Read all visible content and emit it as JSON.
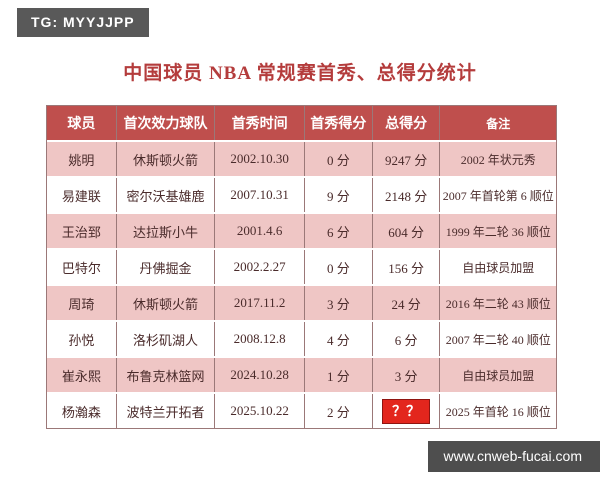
{
  "badges": {
    "top_left": "TG: MYYJJPP",
    "bottom_right": "www.cnweb-fucai.com"
  },
  "title": "中国球员 NBA 常规赛首秀、总得分统计",
  "table": {
    "headers": [
      "球员",
      "首次效力球队",
      "首秀时间",
      "首秀得分",
      "总得分",
      "备注"
    ],
    "rows": [
      [
        "姚明",
        "休斯顿火箭",
        "2002.10.30",
        "0 分",
        "9247 分",
        "2002 年状元秀"
      ],
      [
        "易建联",
        "密尔沃基雄鹿",
        "2007.10.31",
        "9 分",
        "2148 分",
        "2007 年首轮第 6 顺位"
      ],
      [
        "王治郅",
        "达拉斯小牛",
        "2001.4.6",
        "6 分",
        "604 分",
        "1999 年二轮 36 顺位"
      ],
      [
        "巴特尔",
        "丹佛掘金",
        "2002.2.27",
        "0 分",
        "156 分",
        "自由球员加盟"
      ],
      [
        "周琦",
        "休斯顿火箭",
        "2017.11.2",
        "3 分",
        "24 分",
        "2016 年二轮 43 顺位"
      ],
      [
        "孙悦",
        "洛杉矶湖人",
        "2008.12.8",
        "4 分",
        "6 分",
        "2007 年二轮 40 顺位"
      ],
      [
        "崔永熙",
        "布鲁克林篮网",
        "2024.10.28",
        "1 分",
        "3 分",
        "自由球员加盟"
      ],
      [
        "杨瀚森",
        "波特兰开拓者",
        "2025.10.22",
        "2 分",
        "？？",
        "2025 年首轮 16 顺位"
      ]
    ],
    "unknown_value_cell": {
      "row": 7,
      "col": 4,
      "text": "？？",
      "highlight_color": "#e3261d"
    }
  },
  "chart_data": {
    "type": "table",
    "title": "中国球员 NBA 常规赛首秀、总得分统计",
    "columns": [
      "球员",
      "首次效力球队",
      "首秀时间",
      "首秀得分",
      "总得分",
      "备注"
    ],
    "rows": [
      [
        "姚明",
        "休斯顿火箭",
        "2002.10.30",
        "0 分",
        "9247 分",
        "2002 年状元秀"
      ],
      [
        "易建联",
        "密尔沃基雄鹿",
        "2007.10.31",
        "9 分",
        "2148 分",
        "2007 年首轮第 6 顺位"
      ],
      [
        "王治郅",
        "达拉斯小牛",
        "2001.4.6",
        "6 分",
        "604 分",
        "1999 年二轮 36 顺位"
      ],
      [
        "巴特尔",
        "丹佛掘金",
        "2002.2.27",
        "0 分",
        "156 分",
        "自由球员加盟"
      ],
      [
        "周琦",
        "休斯顿火箭",
        "2017.11.2",
        "3 分",
        "24 分",
        "2016 年二轮 43 顺位"
      ],
      [
        "孙悦",
        "洛杉矶湖人",
        "2008.12.8",
        "4 分",
        "6 分",
        "2007 年二轮 40 顺位"
      ],
      [
        "崔永熙",
        "布鲁克林篮网",
        "2024.10.28",
        "1 分",
        "3 分",
        "自由球员加盟"
      ],
      [
        "杨瀚森",
        "波特兰开拓者",
        "2025.10.22",
        "2 分",
        "？？",
        "2025 年首轮 16 顺位"
      ]
    ]
  },
  "colors": {
    "header_bg": "#bf4f4d",
    "row_pink": "#efc6c5",
    "row_white": "#ffffff",
    "title_text": "#b43c3c",
    "cell_text": "#4a2b2b",
    "border": "#9b7878",
    "unknown_badge": "#e3261d",
    "badge_top_left_bg": "#595959",
    "badge_bottom_right_bg": "#4e4e4e"
  }
}
